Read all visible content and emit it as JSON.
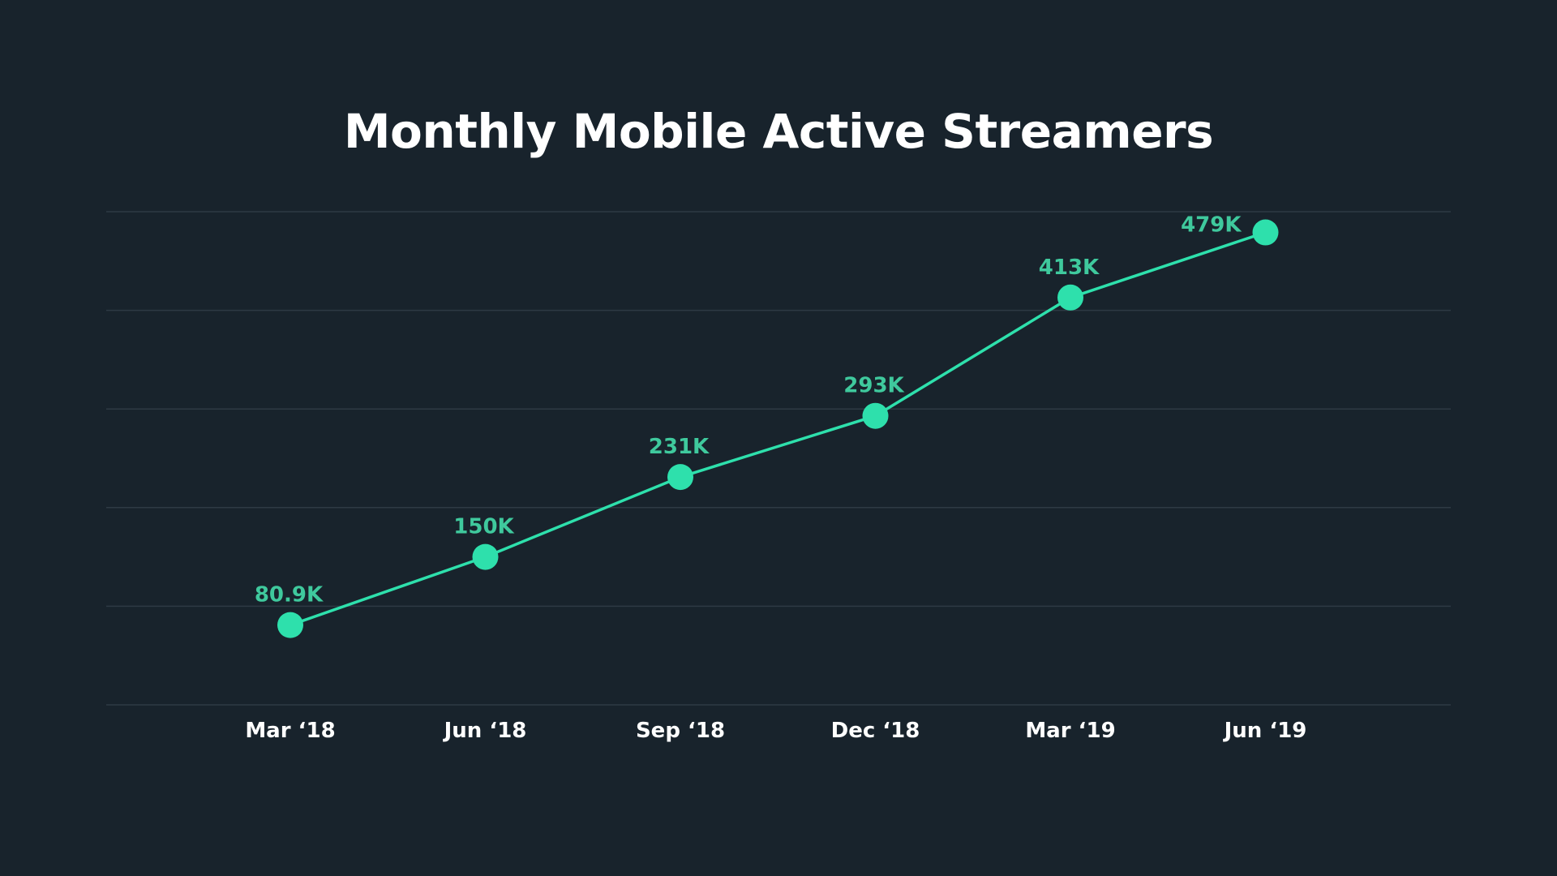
{
  "colors": {
    "background": "#18232c",
    "accent": "#2ee0ac",
    "label_accent": "#3fc99d",
    "gridline": "#2e3a44",
    "text": "#ffffff"
  },
  "chart_data": {
    "type": "line",
    "title": "Monthly Mobile Active Streamers",
    "xlabel": "",
    "ylabel": "",
    "categories": [
      "Mar ‘18",
      "Jun ‘18",
      "Sep ‘18",
      "Dec ‘18",
      "Mar ‘19",
      "Jun ‘19"
    ],
    "series": [
      {
        "values": [
          80900,
          150000,
          231000,
          293000,
          413000,
          479000
        ],
        "data_labels": [
          "80.9K",
          "150K",
          "231K",
          "293K",
          "413K",
          "479K"
        ]
      }
    ],
    "ylim": [
      0,
      500000
    ],
    "grid": true,
    "y_tick_labels_visible": false,
    "legend": "none"
  }
}
